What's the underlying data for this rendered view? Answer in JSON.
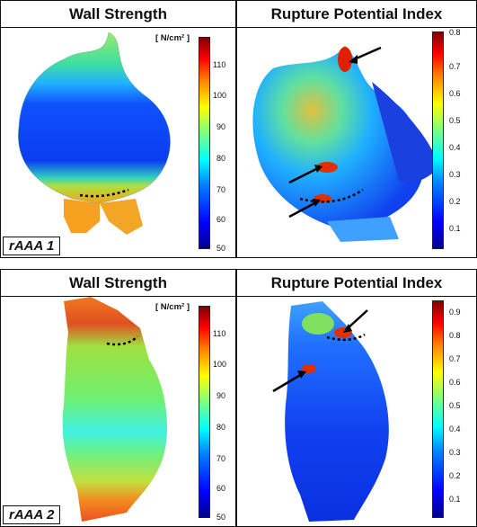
{
  "rows": [
    {
      "case_label": "rAAA 1",
      "wall_strength": {
        "title": "Wall Strength",
        "unit": "[ N/cm² ]",
        "ticks": [
          "110",
          "100",
          "90",
          "80",
          "70",
          "60",
          "50"
        ]
      },
      "rpi": {
        "title": "Rupture Potential Index",
        "ticks": [
          "0.8",
          "0.7",
          "0.6",
          "0.5",
          "0.4",
          "0.3",
          "0.2",
          "0.1"
        ]
      }
    },
    {
      "case_label": "rAAA 2",
      "wall_strength": {
        "title": "Wall Strength",
        "unit": "[ N/cm² ]",
        "ticks": [
          "110",
          "100",
          "90",
          "80",
          "70",
          "60",
          "50"
        ]
      },
      "rpi": {
        "title": "Rupture Potential Index",
        "ticks": [
          "0.9",
          "0.8",
          "0.7",
          "0.6",
          "0.5",
          "0.4",
          "0.3",
          "0.2",
          "0.1"
        ]
      }
    }
  ],
  "colors": {
    "low": "#0000ff",
    "mid": "#ffff00",
    "high": "#ff0000"
  }
}
